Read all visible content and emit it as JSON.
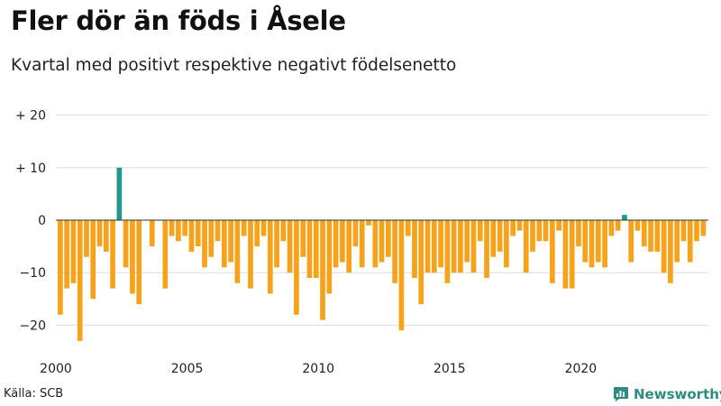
{
  "title": "Fler dör än föds i Åsele",
  "subtitle": "Kvartal med positivt respektive negativt födelsenetto",
  "source": "Källa: SCB",
  "brand": {
    "name": "Newsworthy",
    "icon": "newsworthy-logo-icon"
  },
  "colors": {
    "positive": "#1f9a8a",
    "negative": "#f7a21b",
    "grid": "#dddddd",
    "zero": "#333333"
  },
  "chart_data": {
    "type": "bar",
    "title": "Fler dör än föds i Åsele",
    "subtitle": "Kvartal med positivt respektive negativt födelsenetto",
    "xlabel": "",
    "ylabel": "",
    "ylim": [
      -25,
      20
    ],
    "yticks": [
      20,
      10,
      0,
      -10,
      -20
    ],
    "ytick_labels": [
      "+ 20",
      "+ 10",
      "0",
      "−10",
      "−20"
    ],
    "x_start": "2000 Q1",
    "xticks": [
      2000,
      2005,
      2010,
      2015,
      2020
    ],
    "xtick_labels": [
      "2000",
      "2005",
      "2010",
      "2015",
      "2020"
    ],
    "grid": true,
    "values": [
      -18,
      -13,
      -12,
      -23,
      -7,
      -15,
      -5,
      -6,
      -13,
      10,
      -9,
      -14,
      -16,
      0,
      -5,
      0,
      -13,
      -3,
      -4,
      -3,
      -6,
      -5,
      -9,
      -7,
      -4,
      -9,
      -8,
      -12,
      -3,
      -13,
      -5,
      -3,
      -14,
      -9,
      -4,
      -10,
      -18,
      -7,
      -11,
      -11,
      -19,
      -14,
      -9,
      -8,
      -10,
      -5,
      -9,
      -1,
      -9,
      -8,
      -7,
      -12,
      -21,
      -3,
      -11,
      -16,
      -10,
      -10,
      -9,
      -12,
      -10,
      -10,
      -8,
      -10,
      -4,
      -11,
      -7,
      -6,
      -9,
      -3,
      -2,
      -10,
      -6,
      -4,
      -4,
      -12,
      -2,
      -13,
      -13,
      -5,
      -8,
      -9,
      -8,
      -9,
      -3,
      -2,
      1,
      -8,
      -2,
      -5,
      -6,
      -6,
      -10,
      -12,
      -8,
      -4,
      -8,
      -4,
      -3
    ]
  }
}
